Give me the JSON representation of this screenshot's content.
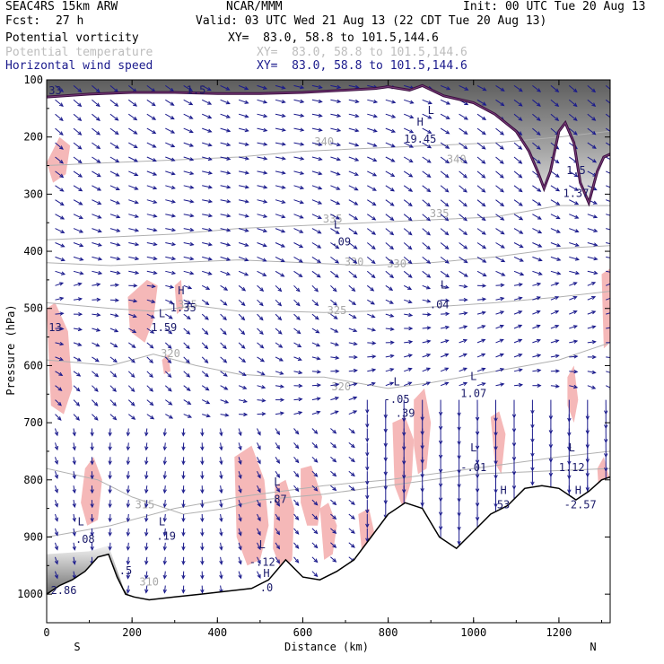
{
  "header": {
    "model": "SEAC4RS 15km ARW",
    "org": "NCAR/MMM",
    "init": "Init: 00 UTC Tue 20 Aug 13",
    "fcst_label": "Fcst:",
    "fcst_value": "27 h",
    "valid": "Valid: 03 UTC Wed 21 Aug 13 (22 CDT Tue 20 Aug 13)",
    "fields": [
      {
        "name": "Potential vorticity",
        "xy": "XY=  83.0, 58.8 to 101.5,144.6",
        "color": "#000000"
      },
      {
        "name": "Potential temperature",
        "xy": "XY=  83.0, 58.8 to 101.5,144.6",
        "color": "#bdbdbd"
      },
      {
        "name": "Horizontal wind speed",
        "xy": "XY=  83.0, 58.8 to 101.5,144.6",
        "color": "#1a1a8c"
      }
    ]
  },
  "chart_data": {
    "type": "cross-section",
    "xlabel": "Distance (km)",
    "ylabel": "Pressure (hPa)",
    "xlim": [
      0,
      1320
    ],
    "ylim": [
      1050,
      100
    ],
    "x_ticks": [
      0,
      200,
      400,
      600,
      800,
      1000,
      1200
    ],
    "y_ticks": [
      100,
      200,
      300,
      400,
      500,
      600,
      700,
      800,
      900,
      1000
    ],
    "endpoint_labels": {
      "left": "S",
      "right": "N"
    },
    "colors": {
      "theta": "#b0b0b0",
      "wind": "#1a1a8c",
      "pv_positive": "#f5b8b8",
      "pv_line": "#3a0f3f",
      "terrain": "#000000"
    },
    "theta_contours": [
      {
        "label": "310",
        "points": [
          [
            0,
            900
          ],
          [
            150,
            880
          ],
          [
            300,
            850
          ],
          [
            450,
            830
          ],
          [
            550,
            820
          ],
          [
            650,
            810
          ],
          [
            800,
            800
          ],
          [
            1000,
            780
          ],
          [
            1200,
            760
          ],
          [
            1320,
            750
          ]
        ],
        "label_pos": [
          [
            240,
            985
          ]
        ]
      },
      {
        "label": "315",
        "points": [
          [
            0,
            780
          ],
          [
            120,
            800
          ],
          [
            200,
            830
          ],
          [
            320,
            860
          ],
          [
            420,
            850
          ],
          [
            500,
            835
          ],
          [
            650,
            825
          ],
          [
            800,
            810
          ],
          [
            1000,
            790
          ],
          [
            1320,
            780
          ]
        ],
        "label_pos": [
          [
            230,
            850
          ]
        ]
      },
      {
        "label": "320",
        "points": [
          [
            0,
            590
          ],
          [
            150,
            600
          ],
          [
            250,
            580
          ],
          [
            350,
            600
          ],
          [
            450,
            615
          ],
          [
            550,
            620
          ],
          [
            650,
            620
          ],
          [
            800,
            640
          ],
          [
            900,
            630
          ],
          [
            1050,
            610
          ],
          [
            1200,
            590
          ],
          [
            1320,
            560
          ]
        ],
        "label_pos": [
          [
            290,
            585
          ],
          [
            690,
            643
          ]
        ]
      },
      {
        "label": "325",
        "points": [
          [
            0,
            490
          ],
          [
            150,
            500
          ],
          [
            250,
            505
          ],
          [
            350,
            495
          ],
          [
            450,
            505
          ],
          [
            550,
            505
          ],
          [
            650,
            507
          ],
          [
            750,
            505
          ],
          [
            850,
            500
          ],
          [
            950,
            495
          ],
          [
            1050,
            490
          ],
          [
            1200,
            480
          ],
          [
            1320,
            470
          ]
        ],
        "label_pos": [
          [
            330,
            500
          ],
          [
            680,
            510
          ]
        ]
      },
      {
        "label": "330",
        "points": [
          [
            0,
            420
          ],
          [
            150,
            425
          ],
          [
            300,
            420
          ],
          [
            450,
            415
          ],
          [
            600,
            420
          ],
          [
            750,
            425
          ],
          [
            900,
            420
          ],
          [
            1050,
            410
          ],
          [
            1200,
            395
          ],
          [
            1320,
            390
          ]
        ],
        "label_pos": [
          [
            720,
            425
          ],
          [
            820,
            428
          ]
        ]
      },
      {
        "label": "335",
        "points": [
          [
            0,
            380
          ],
          [
            150,
            375
          ],
          [
            300,
            370
          ],
          [
            450,
            360
          ],
          [
            600,
            355
          ],
          [
            750,
            350
          ],
          [
            900,
            345
          ],
          [
            1050,
            340
          ],
          [
            1200,
            320
          ],
          [
            1320,
            320
          ]
        ],
        "label_pos": [
          [
            670,
            350
          ],
          [
            920,
            340
          ]
        ]
      },
      {
        "label": "340",
        "points": [
          [
            0,
            250
          ],
          [
            150,
            245
          ],
          [
            300,
            240
          ],
          [
            450,
            235
          ],
          [
            600,
            225
          ],
          [
            750,
            220
          ],
          [
            900,
            215
          ],
          [
            1050,
            210
          ],
          [
            1200,
            200
          ],
          [
            1320,
            190
          ]
        ],
        "label_pos": [
          [
            650,
            215
          ],
          [
            960,
            245
          ]
        ]
      }
    ],
    "pv_curve_1_5": [
      [
        0,
        130
      ],
      [
        100,
        125
      ],
      [
        200,
        122
      ],
      [
        300,
        122
      ],
      [
        400,
        124
      ],
      [
        500,
        124
      ],
      [
        600,
        122
      ],
      [
        700,
        118
      ],
      [
        770,
        115
      ],
      [
        800,
        112
      ],
      [
        850,
        118
      ],
      [
        880,
        110
      ],
      [
        930,
        128
      ],
      [
        1000,
        140
      ],
      [
        1050,
        160
      ],
      [
        1100,
        190
      ],
      [
        1130,
        225
      ],
      [
        1150,
        260
      ],
      [
        1165,
        290
      ],
      [
        1180,
        260
      ],
      [
        1200,
        190
      ],
      [
        1215,
        175
      ],
      [
        1235,
        210
      ],
      [
        1250,
        280
      ],
      [
        1270,
        315
      ],
      [
        1290,
        260
      ],
      [
        1305,
        235
      ],
      [
        1320,
        230
      ]
    ],
    "pv_blobs": [
      [
        [
          0,
          245
        ],
        [
          30,
          200
        ],
        [
          55,
          215
        ],
        [
          45,
          265
        ],
        [
          15,
          280
        ]
      ],
      [
        [
          0,
          500
        ],
        [
          20,
          490
        ],
        [
          50,
          540
        ],
        [
          60,
          640
        ],
        [
          40,
          685
        ],
        [
          10,
          670
        ]
      ],
      [
        [
          190,
          480
        ],
        [
          235,
          450
        ],
        [
          260,
          460
        ],
        [
          250,
          520
        ],
        [
          230,
          560
        ],
        [
          195,
          540
        ]
      ],
      [
        [
          90,
          780
        ],
        [
          110,
          760
        ],
        [
          130,
          800
        ],
        [
          120,
          870
        ],
        [
          95,
          880
        ],
        [
          80,
          840
        ]
      ],
      [
        [
          440,
          760
        ],
        [
          480,
          740
        ],
        [
          510,
          800
        ],
        [
          520,
          880
        ],
        [
          500,
          940
        ],
        [
          470,
          950
        ],
        [
          445,
          900
        ]
      ],
      [
        [
          535,
          810
        ],
        [
          560,
          800
        ],
        [
          580,
          850
        ],
        [
          575,
          940
        ],
        [
          550,
          960
        ],
        [
          530,
          920
        ]
      ],
      [
        [
          595,
          780
        ],
        [
          620,
          775
        ],
        [
          645,
          830
        ],
        [
          635,
          880
        ],
        [
          610,
          880
        ],
        [
          595,
          840
        ]
      ],
      [
        [
          640,
          850
        ],
        [
          660,
          840
        ],
        [
          680,
          880
        ],
        [
          670,
          930
        ],
        [
          650,
          940
        ]
      ],
      [
        [
          730,
          860
        ],
        [
          755,
          850
        ],
        [
          770,
          900
        ],
        [
          760,
          940
        ],
        [
          740,
          940
        ]
      ],
      [
        [
          810,
          700
        ],
        [
          840,
          690
        ],
        [
          860,
          730
        ],
        [
          855,
          800
        ],
        [
          835,
          850
        ],
        [
          815,
          810
        ]
      ],
      [
        [
          860,
          660
        ],
        [
          885,
          640
        ],
        [
          900,
          700
        ],
        [
          890,
          780
        ],
        [
          870,
          790
        ],
        [
          860,
          740
        ]
      ],
      [
        [
          1040,
          690
        ],
        [
          1060,
          680
        ],
        [
          1075,
          720
        ],
        [
          1065,
          790
        ],
        [
          1050,
          770
        ]
      ],
      [
        [
          1220,
          620
        ],
        [
          1235,
          600
        ],
        [
          1245,
          660
        ],
        [
          1235,
          700
        ],
        [
          1220,
          670
        ]
      ],
      [
        [
          1290,
          780
        ],
        [
          1305,
          760
        ],
        [
          1320,
          800
        ],
        [
          1310,
          860
        ],
        [
          1295,
          840
        ]
      ],
      [
        [
          1300,
          440
        ],
        [
          1320,
          430
        ],
        [
          1320,
          560
        ],
        [
          1305,
          570
        ]
      ],
      [
        [
          300,
          460
        ],
        [
          315,
          450
        ],
        [
          320,
          500
        ],
        [
          305,
          510
        ]
      ],
      [
        [
          270,
          590
        ],
        [
          285,
          580
        ],
        [
          290,
          610
        ],
        [
          275,
          615
        ]
      ]
    ],
    "terrain_line": [
      [
        0,
        1000
      ],
      [
        30,
        985
      ],
      [
        60,
        975
      ],
      [
        90,
        960
      ],
      [
        120,
        935
      ],
      [
        145,
        930
      ],
      [
        165,
        970
      ],
      [
        185,
        1000
      ],
      [
        205,
        1005
      ],
      [
        240,
        1010
      ],
      [
        300,
        1005
      ],
      [
        360,
        1000
      ],
      [
        420,
        995
      ],
      [
        480,
        990
      ],
      [
        520,
        975
      ],
      [
        560,
        940
      ],
      [
        600,
        970
      ],
      [
        640,
        975
      ],
      [
        680,
        960
      ],
      [
        720,
        940
      ],
      [
        760,
        900
      ],
      [
        800,
        860
      ],
      [
        840,
        840
      ],
      [
        880,
        850
      ],
      [
        920,
        900
      ],
      [
        960,
        920
      ],
      [
        1000,
        890
      ],
      [
        1040,
        860
      ],
      [
        1080,
        845
      ],
      [
        1120,
        815
      ],
      [
        1160,
        810
      ],
      [
        1200,
        815
      ],
      [
        1240,
        835
      ],
      [
        1270,
        820
      ],
      [
        1300,
        800
      ],
      [
        1320,
        795
      ]
    ],
    "annotations": [
      {
        "text": "1.5",
        "x": 350,
        "y": 124
      },
      {
        "text": "H",
        "x": 875,
        "y": 180
      },
      {
        "text": "19.45",
        "x": 875,
        "y": 210
      },
      {
        "text": "L",
        "x": 900,
        "y": 160
      },
      {
        "text": "1.5",
        "x": 1240,
        "y": 265
      },
      {
        "text": "1.37",
        "x": 1240,
        "y": 305
      },
      {
        "text": "L",
        "x": 680,
        "y": 360
      },
      {
        "text": ".09",
        "x": 690,
        "y": 390
      },
      {
        "text": "H",
        "x": 315,
        "y": 475
      },
      {
        "text": "1.35",
        "x": 320,
        "y": 505
      },
      {
        "text": "L",
        "x": 270,
        "y": 515
      },
      {
        "text": "1.59",
        "x": 275,
        "y": 540
      },
      {
        "text": "L",
        "x": 930,
        "y": 465
      },
      {
        "text": ".04",
        "x": 920,
        "y": 500
      },
      {
        "text": "13",
        "x": 20,
        "y": 540
      },
      {
        "text": "L",
        "x": 820,
        "y": 635
      },
      {
        "text": "-.05",
        "x": 820,
        "y": 665
      },
      {
        "text": ".39",
        "x": 840,
        "y": 690
      },
      {
        "text": "L",
        "x": 1000,
        "y": 625
      },
      {
        "text": "1.07",
        "x": 1000,
        "y": 655
      },
      {
        "text": "L",
        "x": 1000,
        "y": 750
      },
      {
        "text": "-.01",
        "x": 1000,
        "y": 785
      },
      {
        "text": "L",
        "x": 1230,
        "y": 750
      },
      {
        "text": "1.12",
        "x": 1230,
        "y": 785
      },
      {
        "text": "L",
        "x": 540,
        "y": 810
      },
      {
        "text": ".87",
        "x": 540,
        "y": 840
      },
      {
        "text": "H",
        "x": 1070,
        "y": 825
      },
      {
        "text": "53",
        "x": 1070,
        "y": 850
      },
      {
        "text": "H",
        "x": 1245,
        "y": 825
      },
      {
        "text": "-2.57",
        "x": 1250,
        "y": 850
      },
      {
        "text": "L",
        "x": 80,
        "y": 880
      },
      {
        "text": ".08",
        "x": 90,
        "y": 910
      },
      {
        "text": "L",
        "x": 270,
        "y": 880
      },
      {
        "text": ".19",
        "x": 280,
        "y": 905
      },
      {
        "text": "L",
        "x": 505,
        "y": 920
      },
      {
        "text": "-.12",
        "x": 505,
        "y": 950
      },
      {
        "text": "H",
        "x": 515,
        "y": 970
      },
      {
        "text": ".0",
        "x": 515,
        "y": 995
      },
      {
        "text": ".5",
        "x": 185,
        "y": 965
      },
      {
        "text": "2.86",
        "x": 40,
        "y": 1000
      },
      {
        "text": "33",
        "x": 20,
        "y": 125
      }
    ]
  }
}
